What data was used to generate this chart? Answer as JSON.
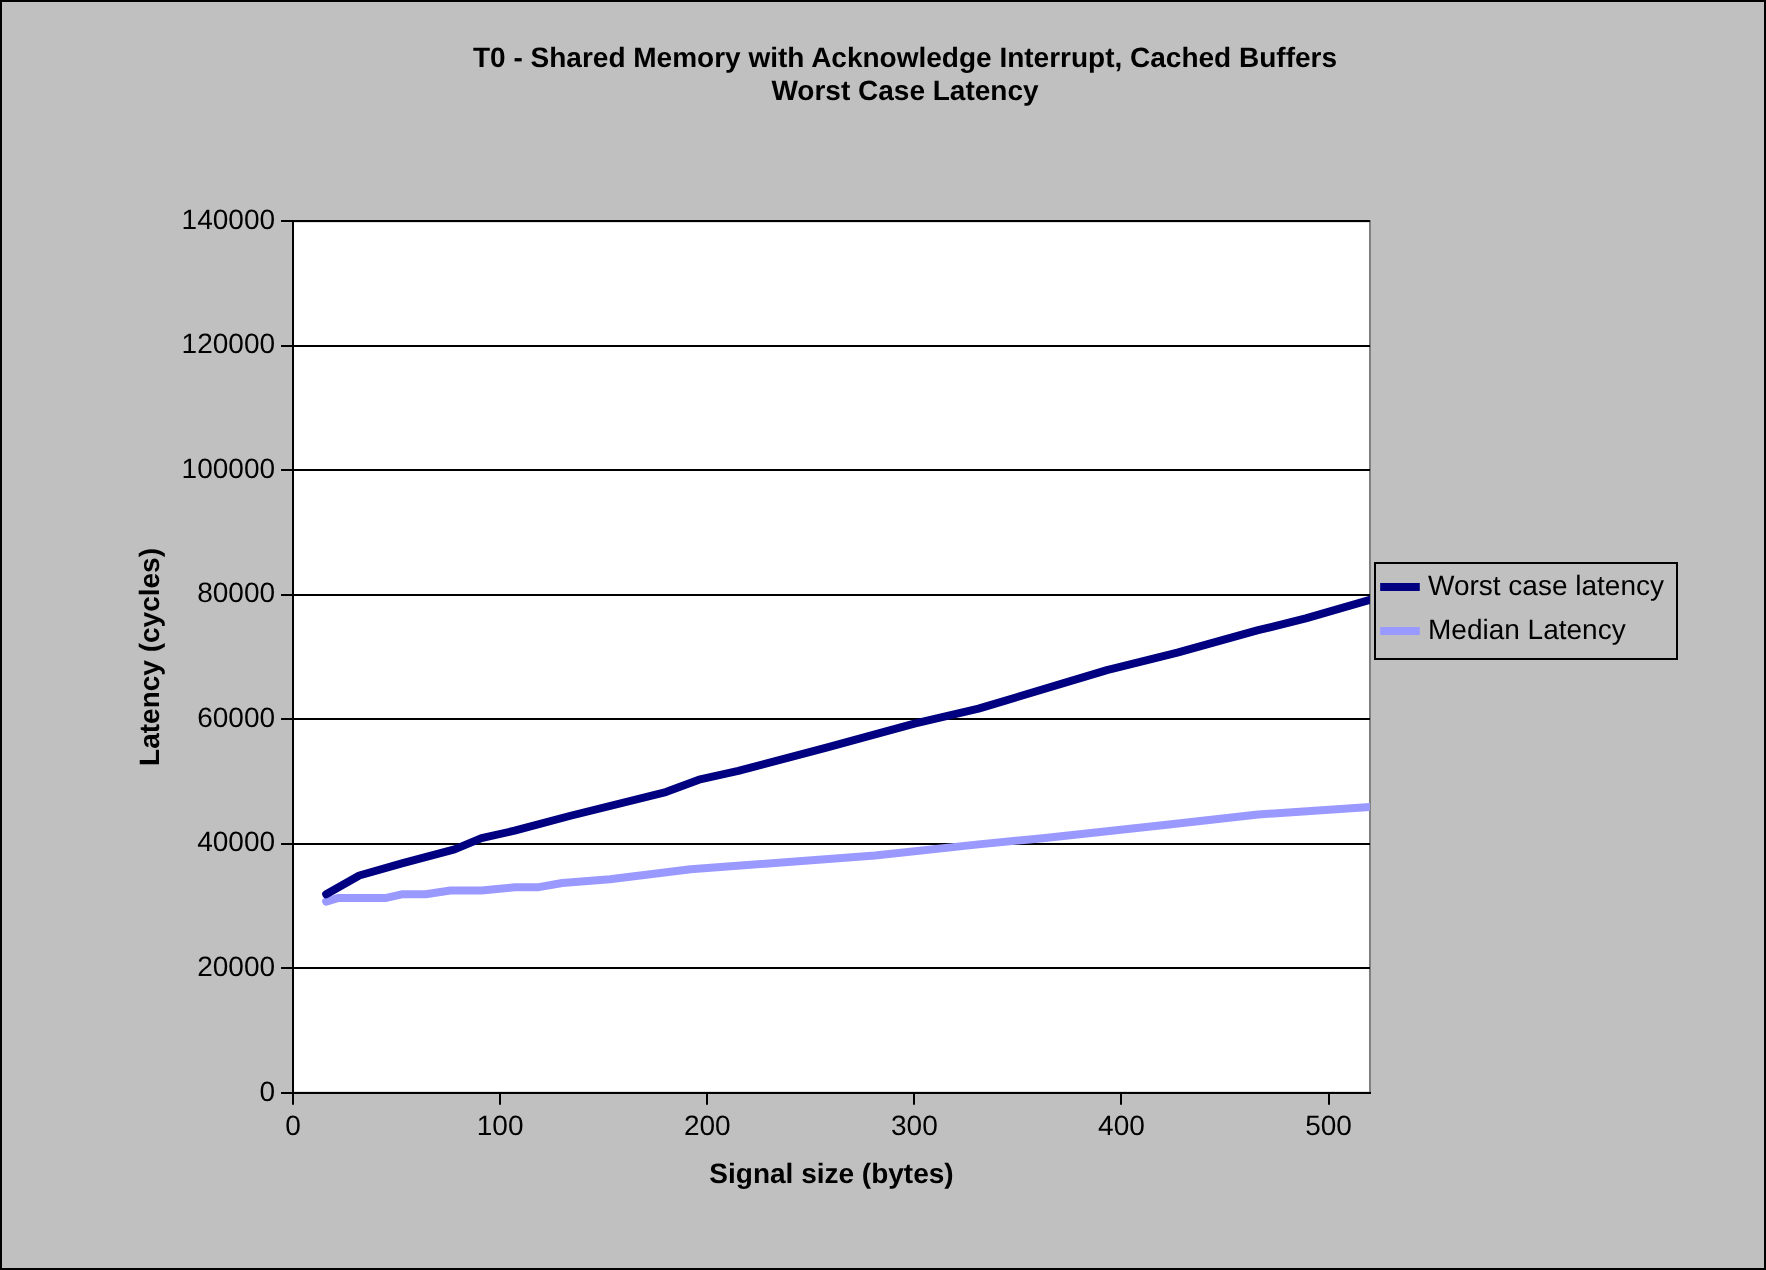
{
  "chart_data": {
    "type": "line",
    "title": "T0 - Shared Memory with Acknowledge Interrupt, Cached Buffers\nWorst Case Latency",
    "xlabel": "Signal size (bytes)",
    "ylabel": "Latency (cycles)",
    "xlim": [
      0,
      520
    ],
    "xticks": [
      0,
      100,
      200,
      300,
      400,
      500
    ],
    "ylim": [
      0,
      140000
    ],
    "yticks": [
      0,
      20000,
      40000,
      60000,
      80000,
      100000,
      120000,
      140000
    ],
    "grid": "y",
    "legend": "right",
    "marker": "none",
    "line_style": "solid",
    "series": [
      {
        "name": "Worst case latency",
        "color": "#000080",
        "x": [
          16,
          32,
          53,
          78,
          91,
          107,
          134,
          180,
          196,
          215,
          258,
          300,
          331,
          393,
          427,
          466,
          489,
          520
        ],
        "values": [
          31900,
          34900,
          36900,
          39100,
          40900,
          42100,
          44500,
          48300,
          50300,
          51700,
          55500,
          59300,
          61700,
          67900,
          70700,
          74300,
          76200,
          79200
        ]
      },
      {
        "name": "Median Latency",
        "color": "#9999ff",
        "x": [
          16,
          22,
          45,
          53,
          64,
          76,
          91,
          107,
          118,
          130,
          153,
          192,
          281,
          331,
          362,
          423,
          466,
          520
        ],
        "values": [
          30700,
          31300,
          31300,
          31900,
          31900,
          32500,
          32500,
          33000,
          33000,
          33700,
          34300,
          35900,
          38100,
          39900,
          40900,
          43100,
          44700,
          45900
        ]
      }
    ]
  }
}
